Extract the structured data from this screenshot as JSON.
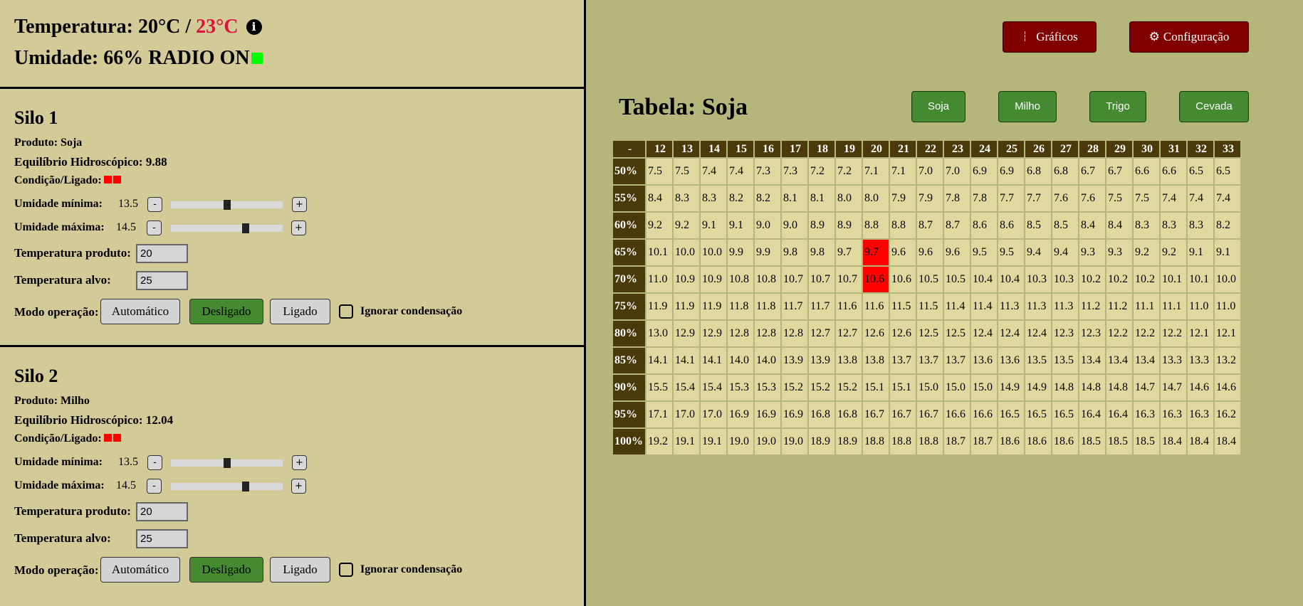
{
  "header": {
    "temp_label": "Temperatura:",
    "temp_current": "20°C",
    "temp_sep": "/",
    "temp_target": "23°C",
    "info_icon": "info-circle-icon",
    "humidity_label": "Umidade:",
    "humidity_value": "66%",
    "radio_status": "RADIO ON",
    "radio_color": "#00ff00"
  },
  "silos": [
    {
      "title": "Silo 1",
      "produto": "Produto: Soja",
      "equilibrio": "Equilíbrio Hidroscópico: 9.88",
      "condicao": "Condição/Ligado:",
      "status_colors": [
        "#ff0000",
        "#ff0000"
      ],
      "umid_min_label": "Umidade mínima:",
      "umid_min": "13.5",
      "umid_min_slider_fraction": 0.5,
      "umid_max_label": "Umidade máxima:",
      "umid_max": "14.5",
      "umid_max_slider_fraction": 0.68,
      "minus": "-",
      "plus": "+",
      "temp_prod_label": "Temperatura produto:",
      "temp_prod": "20",
      "temp_alvo_label": "Temperatura alvo:",
      "temp_alvo": "25",
      "modo_label": "Modo operação:",
      "modes": [
        "Automático",
        "Desligado",
        "Ligado"
      ],
      "active_mode": "Desligado",
      "ignorar": "Ignorar condensação",
      "ignorar_checked": false
    },
    {
      "title": "Silo 2",
      "produto": "Produto: Milho",
      "equilibrio": "Equilíbrio Hidroscópico: 12.04",
      "condicao": "Condição/Ligado:",
      "status_colors": [
        "#ff0000",
        "#ff0000"
      ],
      "umid_min_label": "Umidade mínima:",
      "umid_min": "13.5",
      "umid_min_slider_fraction": 0.5,
      "umid_max_label": "Umidade máxima:",
      "umid_max": "14.5",
      "umid_max_slider_fraction": 0.68,
      "minus": "-",
      "plus": "+",
      "temp_prod_label": "Temperatura produto:",
      "temp_prod": "20",
      "temp_alvo_label": "Temperatura alvo:",
      "temp_alvo": "25",
      "modo_label": "Modo operação:",
      "modes": [
        "Automático",
        "Desligado",
        "Ligado"
      ],
      "active_mode": "Desligado",
      "ignorar": "Ignorar condensação",
      "ignorar_checked": false
    }
  ],
  "top_buttons": {
    "graficos": "Gráficos",
    "graficos_icon": "table-icon",
    "config": "Configuração",
    "config_icon": "gear-icon",
    "color": "#800000"
  },
  "table_title": "Tabela: Soja",
  "product_buttons": [
    "Soja",
    "Milho",
    "Trigo",
    "Cevada"
  ],
  "table": {
    "corner": "-",
    "columns": [
      "12",
      "13",
      "14",
      "15",
      "16",
      "17",
      "18",
      "19",
      "20",
      "21",
      "22",
      "23",
      "24",
      "25",
      "26",
      "27",
      "28",
      "29",
      "30",
      "31",
      "32",
      "33"
    ],
    "highlight_color": "#ff0000",
    "highlighted": [
      [
        "65%",
        "20"
      ],
      [
        "70%",
        "20"
      ]
    ],
    "rows": [
      {
        "label": "50%",
        "values": [
          "7.5",
          "7.5",
          "7.4",
          "7.4",
          "7.3",
          "7.3",
          "7.2",
          "7.2",
          "7.1",
          "7.1",
          "7.0",
          "7.0",
          "6.9",
          "6.9",
          "6.8",
          "6.8",
          "6.7",
          "6.7",
          "6.6",
          "6.6",
          "6.5",
          "6.5"
        ]
      },
      {
        "label": "55%",
        "values": [
          "8.4",
          "8.3",
          "8.3",
          "8.2",
          "8.2",
          "8.1",
          "8.1",
          "8.0",
          "8.0",
          "7.9",
          "7.9",
          "7.8",
          "7.8",
          "7.7",
          "7.7",
          "7.6",
          "7.6",
          "7.5",
          "7.5",
          "7.4",
          "7.4",
          "7.4"
        ]
      },
      {
        "label": "60%",
        "values": [
          "9.2",
          "9.2",
          "9.1",
          "9.1",
          "9.0",
          "9.0",
          "8.9",
          "8.9",
          "8.8",
          "8.8",
          "8.7",
          "8.7",
          "8.6",
          "8.6",
          "8.5",
          "8.5",
          "8.4",
          "8.4",
          "8.3",
          "8.3",
          "8.3",
          "8.2"
        ]
      },
      {
        "label": "65%",
        "values": [
          "10.1",
          "10.0",
          "10.0",
          "9.9",
          "9.9",
          "9.8",
          "9.8",
          "9.7",
          "9.7",
          "9.6",
          "9.6",
          "9.6",
          "9.5",
          "9.5",
          "9.4",
          "9.4",
          "9.3",
          "9.3",
          "9.2",
          "9.2",
          "9.1",
          "9.1"
        ]
      },
      {
        "label": "70%",
        "values": [
          "11.0",
          "10.9",
          "10.9",
          "10.8",
          "10.8",
          "10.7",
          "10.7",
          "10.7",
          "10.6",
          "10.6",
          "10.5",
          "10.5",
          "10.4",
          "10.4",
          "10.3",
          "10.3",
          "10.2",
          "10.2",
          "10.2",
          "10.1",
          "10.1",
          "10.0"
        ]
      },
      {
        "label": "75%",
        "values": [
          "11.9",
          "11.9",
          "11.9",
          "11.8",
          "11.8",
          "11.7",
          "11.7",
          "11.6",
          "11.6",
          "11.5",
          "11.5",
          "11.4",
          "11.4",
          "11.3",
          "11.3",
          "11.3",
          "11.2",
          "11.2",
          "11.1",
          "11.1",
          "11.0",
          "11.0"
        ]
      },
      {
        "label": "80%",
        "values": [
          "13.0",
          "12.9",
          "12.9",
          "12.8",
          "12.8",
          "12.8",
          "12.7",
          "12.7",
          "12.6",
          "12.6",
          "12.5",
          "12.5",
          "12.4",
          "12.4",
          "12.4",
          "12.3",
          "12.3",
          "12.2",
          "12.2",
          "12.2",
          "12.1",
          "12.1"
        ]
      },
      {
        "label": "85%",
        "values": [
          "14.1",
          "14.1",
          "14.1",
          "14.0",
          "14.0",
          "13.9",
          "13.9",
          "13.8",
          "13.8",
          "13.7",
          "13.7",
          "13.7",
          "13.6",
          "13.6",
          "13.5",
          "13.5",
          "13.4",
          "13.4",
          "13.4",
          "13.3",
          "13.3",
          "13.2"
        ]
      },
      {
        "label": "90%",
        "values": [
          "15.5",
          "15.4",
          "15.4",
          "15.3",
          "15.3",
          "15.2",
          "15.2",
          "15.2",
          "15.1",
          "15.1",
          "15.0",
          "15.0",
          "15.0",
          "14.9",
          "14.9",
          "14.8",
          "14.8",
          "14.8",
          "14.7",
          "14.7",
          "14.6",
          "14.6"
        ]
      },
      {
        "label": "95%",
        "values": [
          "17.1",
          "17.0",
          "17.0",
          "16.9",
          "16.9",
          "16.9",
          "16.8",
          "16.8",
          "16.7",
          "16.7",
          "16.7",
          "16.6",
          "16.6",
          "16.5",
          "16.5",
          "16.5",
          "16.4",
          "16.4",
          "16.3",
          "16.3",
          "16.3",
          "16.2"
        ]
      },
      {
        "label": "100%",
        "values": [
          "19.2",
          "19.1",
          "19.1",
          "19.0",
          "19.0",
          "19.0",
          "18.9",
          "18.9",
          "18.8",
          "18.8",
          "18.8",
          "18.7",
          "18.7",
          "18.6",
          "18.6",
          "18.6",
          "18.5",
          "18.5",
          "18.5",
          "18.4",
          "18.4",
          "18.4"
        ]
      }
    ]
  }
}
